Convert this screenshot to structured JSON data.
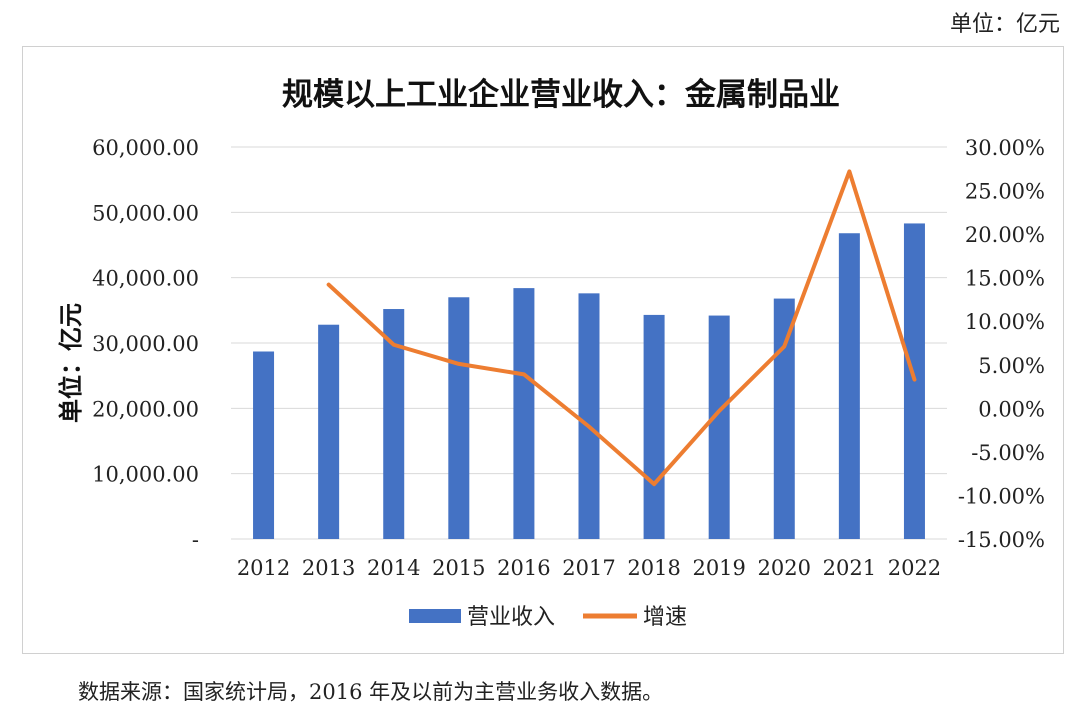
{
  "unit_top": "单位：亿元",
  "source_note": "数据来源：国家统计局，2016 年及以前为主营业务收入数据。",
  "colors": {
    "bar": "#4472C4",
    "line": "#ED7D31",
    "grid": "#D9D9D9"
  },
  "chart_data": {
    "type": "bar",
    "title": "规模以上工业企业营业收入：金属制品业",
    "ylabel": "单位：亿元",
    "categories": [
      "2012",
      "2013",
      "2014",
      "2015",
      "2016",
      "2017",
      "2018",
      "2019",
      "2020",
      "2021",
      "2022"
    ],
    "y_ticks": [
      "-",
      "10,000.00",
      "20,000.00",
      "30,000.00",
      "40,000.00",
      "50,000.00",
      "60,000.00"
    ],
    "y2_ticks": [
      "-15.00%",
      "-10.00%",
      "-5.00%",
      "0.00%",
      "5.00%",
      "10.00%",
      "15.00%",
      "20.00%",
      "25.00%",
      "30.00%"
    ],
    "ylim": [
      0,
      60000
    ],
    "y2lim": [
      -15,
      30
    ],
    "grid": true,
    "legend_position": "bottom",
    "series": [
      {
        "name": "营业收入",
        "type": "bar",
        "values": [
          28700,
          32800,
          35200,
          37000,
          38400,
          37600,
          34300,
          34200,
          36800,
          46800,
          48300
        ]
      },
      {
        "name": "增速",
        "type": "line",
        "axis": "right",
        "values": [
          null,
          14.2,
          7.3,
          5.1,
          3.9,
          -2.1,
          -8.7,
          -0.3,
          7.1,
          27.2,
          3.3
        ]
      }
    ]
  }
}
